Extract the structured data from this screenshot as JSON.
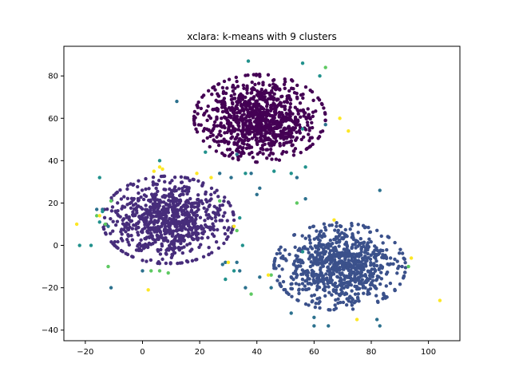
{
  "chart_data": {
    "type": "scatter",
    "title": "xclara: k-means with 9 clusters",
    "xlabel": "",
    "ylabel": "",
    "xlim": [
      -27.5,
      111
    ],
    "ylim": [
      -45,
      94
    ],
    "xticks": [
      -20,
      0,
      20,
      40,
      60,
      80,
      100
    ],
    "yticks": [
      -40,
      -20,
      0,
      20,
      40,
      60,
      80
    ],
    "grid": false,
    "legend": "none",
    "series": [
      {
        "color": "#440154",
        "blob": {
          "cx": 41,
          "cy": 60,
          "sx": 10,
          "sy": 9,
          "n": 950
        },
        "points": []
      },
      {
        "color": "#472d7b",
        "blob": {
          "cx": 9,
          "cy": 12,
          "sx": 10,
          "sy": 9,
          "n": 850
        },
        "points": []
      },
      {
        "color": "#3b518b",
        "blob": {
          "cx": 69,
          "cy": -10,
          "sx": 10,
          "sy": 9,
          "n": 850
        },
        "points": []
      },
      {
        "color": "#2c718e",
        "points": [
          [
            -16,
            17
          ],
          [
            -14,
            17
          ],
          [
            -12,
            9
          ],
          [
            -11,
            -20
          ],
          [
            12,
            68
          ],
          [
            31,
            32
          ],
          [
            33,
            43
          ],
          [
            38,
            34
          ],
          [
            40,
            24
          ],
          [
            41,
            27
          ],
          [
            54,
            32
          ],
          [
            57,
            22
          ],
          [
            64,
            57
          ],
          [
            60,
            -34
          ],
          [
            65,
            -38
          ],
          [
            82,
            -35
          ],
          [
            83,
            -38
          ],
          [
            83,
            26
          ],
          [
            33,
            -8
          ],
          [
            28,
            -9
          ],
          [
            0,
            -12
          ],
          [
            27,
            34
          ],
          [
            29,
            -8
          ],
          [
            34,
            -12
          ],
          [
            36,
            -20
          ],
          [
            45,
            -20
          ],
          [
            41,
            -15
          ],
          [
            52,
            -32
          ],
          [
            60,
            -38
          ]
        ]
      },
      {
        "color": "#21918c",
        "points": [
          [
            -22,
            0
          ],
          [
            -18,
            0
          ],
          [
            -15,
            11
          ],
          [
            -15,
            32
          ],
          [
            -14,
            16
          ],
          [
            22,
            44
          ],
          [
            36,
            34
          ],
          [
            46,
            35
          ],
          [
            52,
            34
          ],
          [
            56,
            55
          ],
          [
            57,
            37
          ],
          [
            62,
            80
          ],
          [
            56,
            86
          ],
          [
            37,
            87
          ],
          [
            34,
            13
          ],
          [
            32,
            -12
          ],
          [
            29,
            -16
          ],
          [
            35,
            0
          ],
          [
            56,
            -3
          ],
          [
            6,
            40
          ]
        ]
      },
      {
        "color": "#5ec962",
        "points": [
          [
            -16,
            14
          ],
          [
            -13,
            10
          ],
          [
            -11,
            21
          ],
          [
            3,
            -12
          ],
          [
            6,
            -12
          ],
          [
            9,
            -13
          ],
          [
            27,
            21
          ],
          [
            33,
            7
          ],
          [
            38,
            -23
          ],
          [
            45,
            -14
          ],
          [
            54,
            20
          ],
          [
            64,
            84
          ],
          [
            93,
            -10
          ],
          [
            -12,
            -10
          ]
        ]
      },
      {
        "color": "#fde725",
        "points": [
          [
            -23,
            10
          ],
          [
            -15,
            14
          ],
          [
            2,
            -21
          ],
          [
            4,
            35
          ],
          [
            6,
            37
          ],
          [
            7,
            36
          ],
          [
            19,
            34
          ],
          [
            24,
            32
          ],
          [
            30,
            -8
          ],
          [
            32,
            9
          ],
          [
            69,
            60
          ],
          [
            72,
            54
          ],
          [
            75,
            -35
          ],
          [
            67,
            12
          ],
          [
            104,
            -26
          ],
          [
            94,
            -6
          ],
          [
            44,
            -14
          ]
        ]
      }
    ]
  }
}
